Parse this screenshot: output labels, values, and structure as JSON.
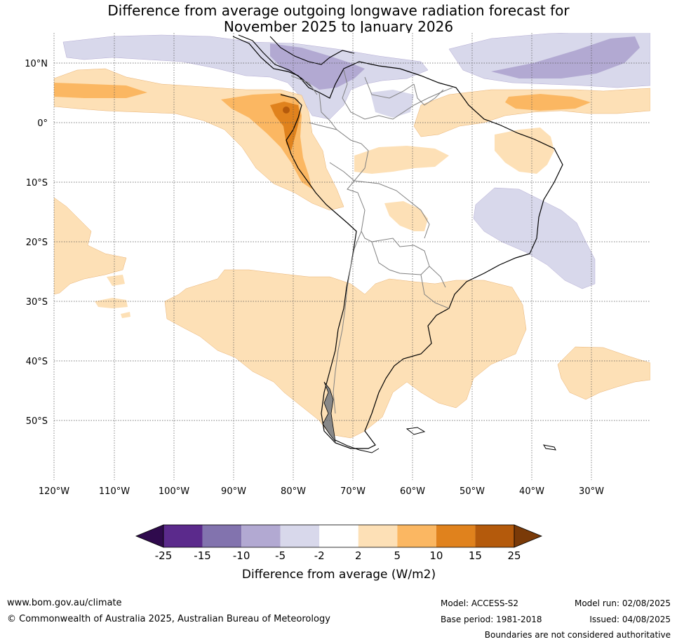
{
  "title_line1": "Difference from average outgoing longwave radiation forecast for",
  "title_line2": "November 2025 to January 2026",
  "map": {
    "lat_labels": [
      "10°N",
      "0°",
      "10°S",
      "20°S",
      "30°S",
      "40°S",
      "50°S"
    ],
    "lon_labels": [
      "120°W",
      "110°W",
      "100°W",
      "90°W",
      "80°W",
      "70°W",
      "60°W",
      "50°W",
      "40°W",
      "30°W"
    ]
  },
  "colorbar": {
    "ticks": [
      "-25",
      "-15",
      "-10",
      "-5",
      "-2",
      "2",
      "5",
      "10",
      "15",
      "25"
    ],
    "colors": [
      "#5b2a8c",
      "#8273ae",
      "#b2a9d2",
      "#d8d8eb",
      "#ffffff",
      "#fde0b6",
      "#fbb762",
      "#e0821d",
      "#b45a0c"
    ],
    "under_color": "#2f0a4d",
    "over_color": "#7a3a08",
    "title": "Difference from average (W/m2)"
  },
  "footer": {
    "website": "www.bom.gov.au/climate",
    "copyright": "© Commonwealth of Australia 2025, Australian Bureau of Meteorology",
    "model": "Model: ACCESS-S2",
    "base_period": "Base period: 1981-2018",
    "model_run": "Model run: 02/08/2025",
    "issued": "Issued: 04/08/2025",
    "disclaimer": "Boundaries are not considered authoritative"
  }
}
